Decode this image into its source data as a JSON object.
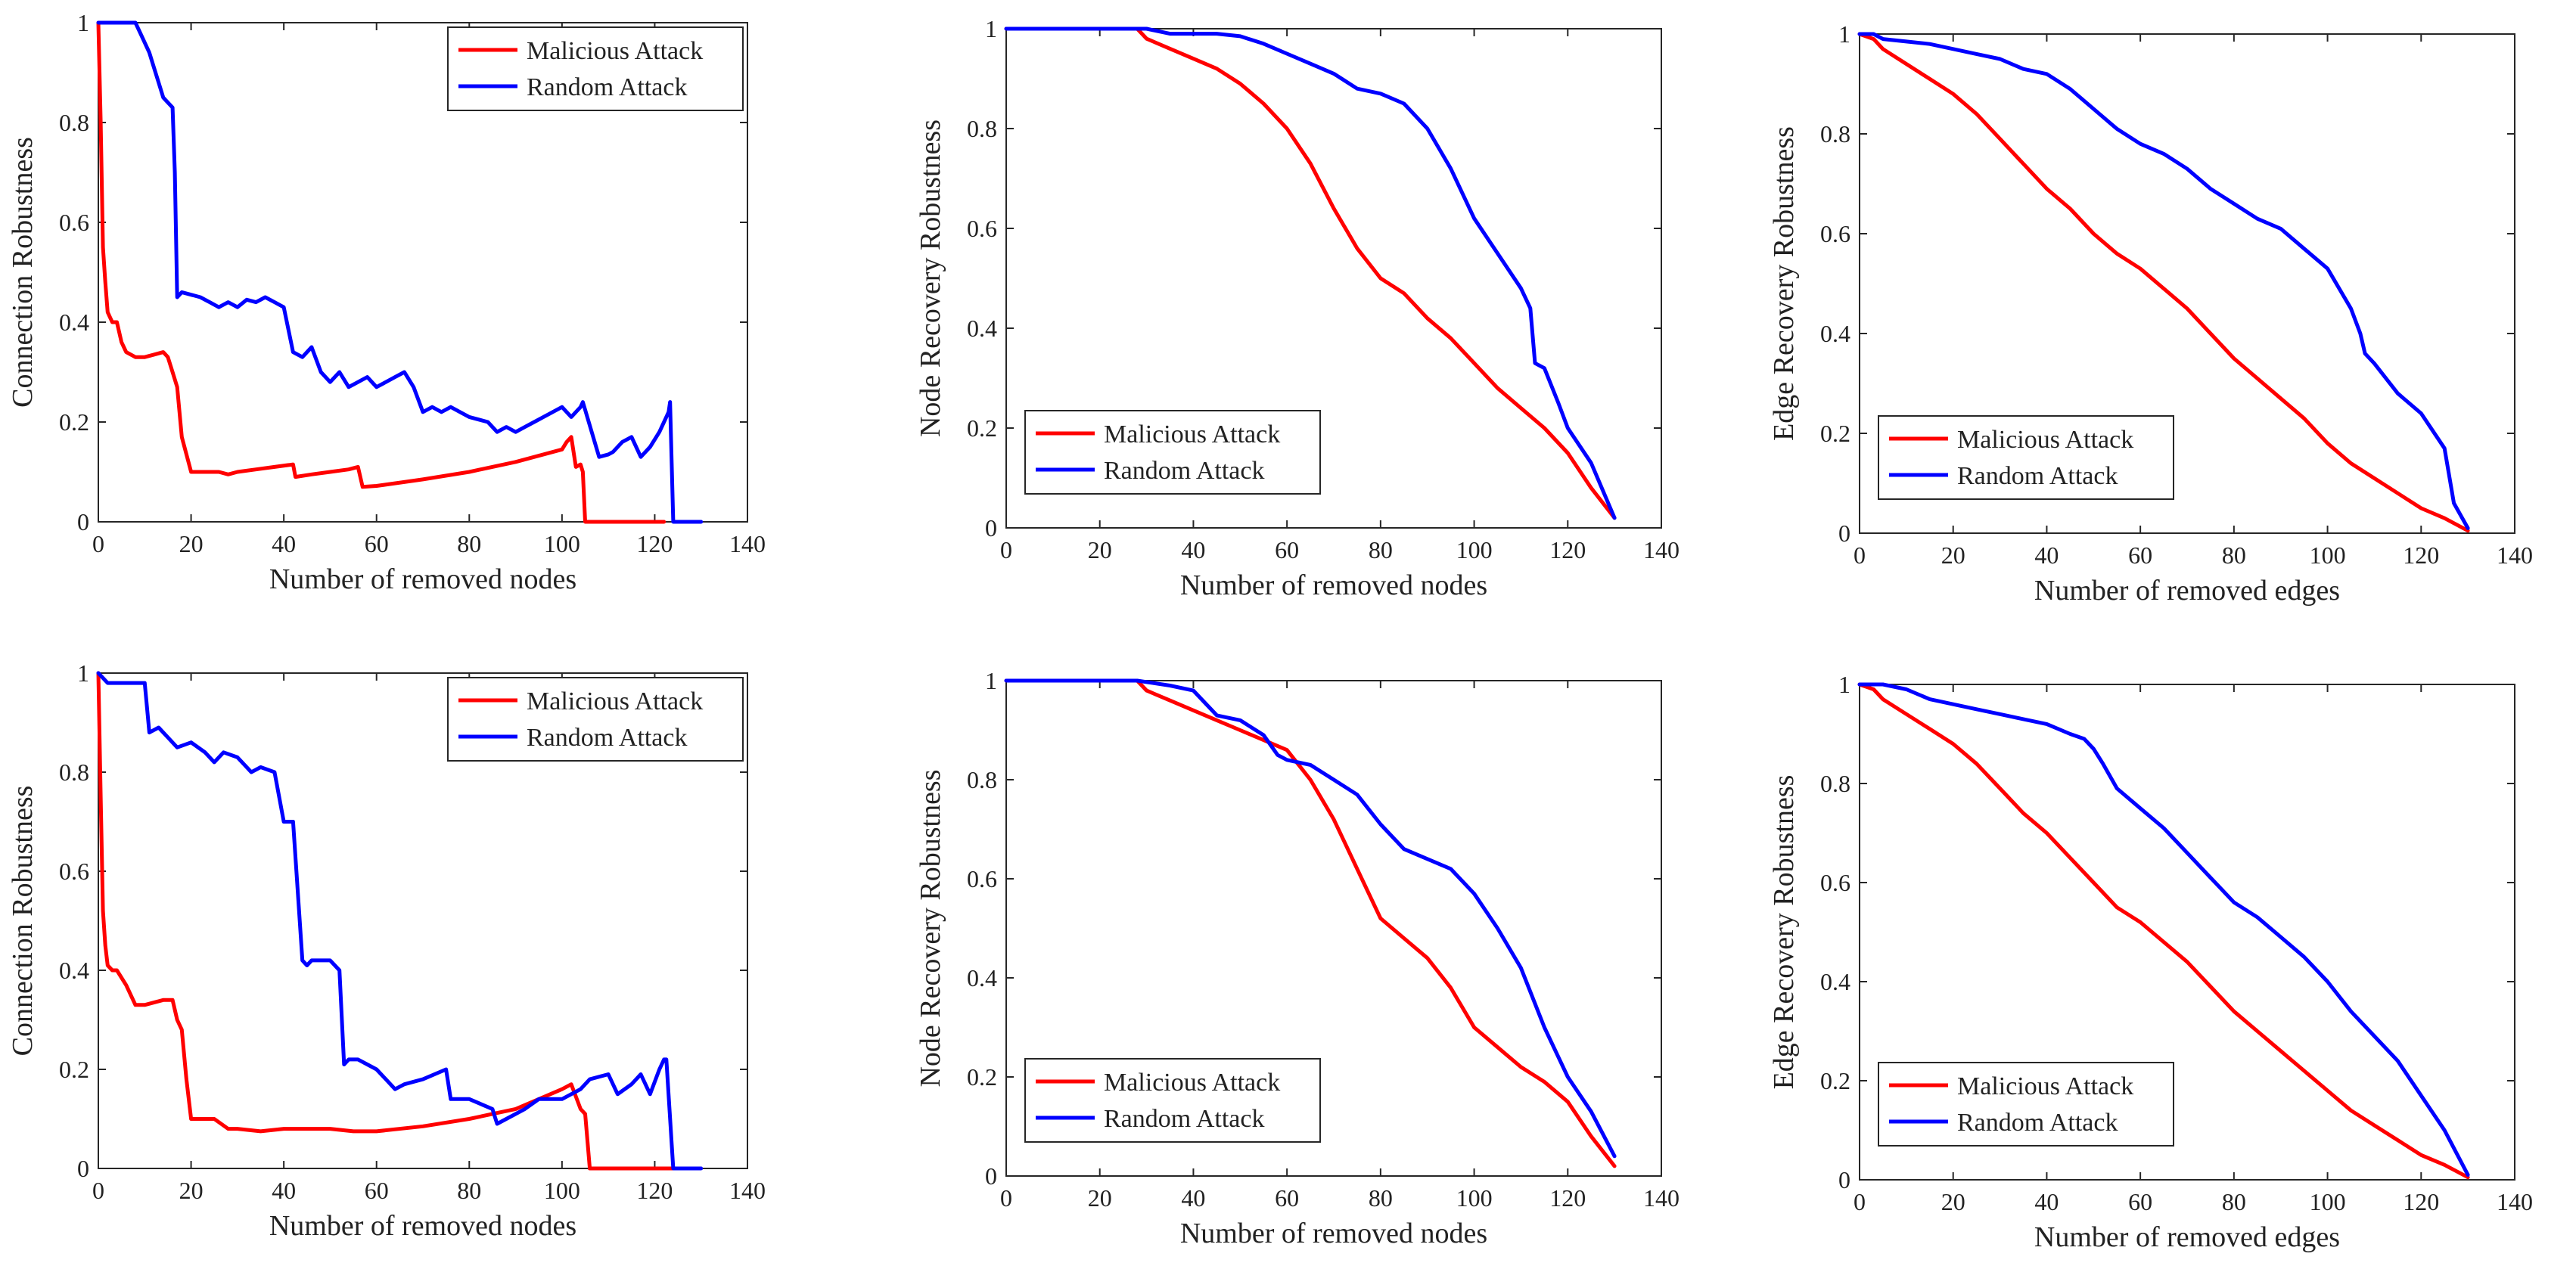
{
  "colors": {
    "malicious": "#ff0000",
    "random": "#0000ff",
    "axis": "#262626"
  },
  "chart_data": [
    {
      "id": "conn-top",
      "type": "line",
      "title": "",
      "xlabel": "Number of removed nodes",
      "ylabel": "Connection Robustness",
      "xlim": [
        0,
        140
      ],
      "ylim": [
        0,
        1
      ],
      "xticks": [
        "0",
        "20",
        "40",
        "60",
        "80",
        "100",
        "120",
        "140"
      ],
      "yticks": [
        "0",
        "0.2",
        "0.4",
        "0.6",
        "0.8",
        "1"
      ],
      "grid": false,
      "legend_position": "top-right",
      "series": [
        {
          "name": "Malicious Attack",
          "color": "#ff0000",
          "x": [
            0,
            0.5,
            1,
            1.5,
            2,
            3,
            4,
            5,
            6,
            8,
            10,
            12,
            14,
            15,
            16,
            17,
            18,
            20,
            22,
            24,
            26,
            28,
            30,
            34,
            38,
            42,
            42.5,
            46,
            50,
            54,
            56,
            57,
            60,
            70,
            80,
            90,
            100,
            101,
            102,
            103,
            104,
            104.5,
            105,
            107,
            112,
            118,
            122
          ],
          "y": [
            1,
            0.8,
            0.55,
            0.48,
            0.42,
            0.4,
            0.4,
            0.36,
            0.34,
            0.33,
            0.33,
            0.335,
            0.34,
            0.33,
            0.3,
            0.27,
            0.17,
            0.1,
            0.1,
            0.1,
            0.1,
            0.095,
            0.1,
            0.105,
            0.11,
            0.115,
            0.09,
            0.095,
            0.1,
            0.105,
            0.11,
            0.07,
            0.072,
            0.085,
            0.1,
            0.12,
            0.145,
            0.16,
            0.17,
            0.11,
            0.115,
            0.1,
            0,
            0,
            0,
            0,
            0
          ]
        },
        {
          "name": "Random Attack",
          "color": "#0000ff",
          "x": [
            0,
            3,
            8,
            9,
            11,
            12,
            13,
            14,
            15,
            16,
            16.5,
            17,
            18,
            22,
            24,
            26,
            28,
            30,
            32,
            34,
            36,
            38,
            40,
            42,
            44,
            46,
            48,
            50,
            52,
            54,
            56,
            58,
            60,
            62,
            64,
            66,
            68,
            70,
            72,
            74,
            76,
            78,
            80,
            84,
            86,
            88,
            90,
            92,
            94,
            96,
            98,
            100,
            102,
            104,
            104.5,
            108,
            110,
            111,
            113,
            115,
            117,
            119,
            121,
            123,
            123.3,
            124,
            126,
            130
          ],
          "y": [
            1,
            1,
            1,
            0.98,
            0.94,
            0.91,
            0.88,
            0.85,
            0.84,
            0.83,
            0.7,
            0.45,
            0.46,
            0.45,
            0.44,
            0.43,
            0.44,
            0.43,
            0.445,
            0.44,
            0.45,
            0.44,
            0.43,
            0.34,
            0.33,
            0.35,
            0.3,
            0.28,
            0.3,
            0.27,
            0.28,
            0.29,
            0.27,
            0.28,
            0.29,
            0.3,
            0.27,
            0.22,
            0.23,
            0.22,
            0.23,
            0.22,
            0.21,
            0.2,
            0.18,
            0.19,
            0.18,
            0.19,
            0.2,
            0.21,
            0.22,
            0.23,
            0.21,
            0.23,
            0.24,
            0.13,
            0.135,
            0.14,
            0.16,
            0.17,
            0.13,
            0.15,
            0.18,
            0.22,
            0.24,
            0,
            0,
            0
          ]
        }
      ]
    },
    {
      "id": "node-top",
      "type": "line",
      "title": "",
      "xlabel": "Number of removed nodes",
      "ylabel": "Node Recovery Robustness",
      "xlim": [
        0,
        140
      ],
      "ylim": [
        0,
        1
      ],
      "xticks": [
        "0",
        "20",
        "40",
        "60",
        "80",
        "100",
        "120",
        "140"
      ],
      "yticks": [
        "0",
        "0.2",
        "0.4",
        "0.6",
        "0.8",
        "1"
      ],
      "grid": false,
      "legend_position": "bottom-left",
      "series": [
        {
          "name": "Malicious Attack",
          "color": "#ff0000",
          "x": [
            0,
            28,
            30,
            35,
            40,
            45,
            50,
            55,
            60,
            65,
            70,
            75,
            80,
            85,
            90,
            95,
            100,
            105,
            110,
            115,
            120,
            125,
            130
          ],
          "y": [
            1,
            1,
            0.98,
            0.96,
            0.94,
            0.92,
            0.89,
            0.85,
            0.8,
            0.73,
            0.64,
            0.56,
            0.5,
            0.47,
            0.42,
            0.38,
            0.33,
            0.28,
            0.24,
            0.2,
            0.15,
            0.08,
            0.02
          ]
        },
        {
          "name": "Random Attack",
          "color": "#0000ff",
          "x": [
            0,
            30,
            35,
            45,
            50,
            55,
            60,
            65,
            70,
            75,
            80,
            85,
            90,
            95,
            100,
            105,
            110,
            112,
            113,
            115,
            118,
            120,
            125,
            130
          ],
          "y": [
            1,
            1,
            0.99,
            0.99,
            0.985,
            0.97,
            0.95,
            0.93,
            0.91,
            0.88,
            0.87,
            0.85,
            0.8,
            0.72,
            0.62,
            0.55,
            0.48,
            0.44,
            0.33,
            0.32,
            0.25,
            0.2,
            0.13,
            0.02
          ]
        }
      ]
    },
    {
      "id": "edge-top",
      "type": "line",
      "title": "",
      "xlabel": "Number of removed edges",
      "ylabel": "Edge Recovery Robustness",
      "xlim": [
        0,
        140
      ],
      "ylim": [
        0,
        1
      ],
      "xticks": [
        "0",
        "20",
        "40",
        "60",
        "80",
        "100",
        "120",
        "140"
      ],
      "yticks": [
        "0",
        "0.2",
        "0.4",
        "0.6",
        "0.8",
        "1"
      ],
      "grid": false,
      "legend_position": "bottom-left",
      "series": [
        {
          "name": "Malicious Attack",
          "color": "#ff0000",
          "x": [
            0,
            3,
            5,
            10,
            15,
            20,
            25,
            30,
            35,
            40,
            45,
            50,
            55,
            60,
            65,
            70,
            75,
            80,
            85,
            90,
            95,
            100,
            105,
            110,
            115,
            120,
            125,
            130
          ],
          "y": [
            1,
            0.99,
            0.97,
            0.94,
            0.91,
            0.88,
            0.84,
            0.79,
            0.74,
            0.69,
            0.65,
            0.6,
            0.56,
            0.53,
            0.49,
            0.45,
            0.4,
            0.35,
            0.31,
            0.27,
            0.23,
            0.18,
            0.14,
            0.11,
            0.08,
            0.05,
            0.03,
            0.005
          ]
        },
        {
          "name": "Random Attack",
          "color": "#0000ff",
          "x": [
            0,
            3,
            5,
            10,
            15,
            20,
            25,
            30,
            35,
            40,
            45,
            50,
            55,
            60,
            65,
            70,
            75,
            80,
            85,
            90,
            95,
            100,
            105,
            107,
            108,
            110,
            115,
            120,
            125,
            127,
            130
          ],
          "y": [
            1,
            1,
            0.99,
            0.985,
            0.98,
            0.97,
            0.96,
            0.95,
            0.93,
            0.92,
            0.89,
            0.85,
            0.81,
            0.78,
            0.76,
            0.73,
            0.69,
            0.66,
            0.63,
            0.61,
            0.57,
            0.53,
            0.45,
            0.4,
            0.36,
            0.34,
            0.28,
            0.24,
            0.17,
            0.06,
            0.01
          ]
        }
      ]
    },
    {
      "id": "conn-bottom",
      "type": "line",
      "title": "",
      "xlabel": "Number of removed nodes",
      "ylabel": "Connection Robustness",
      "xlim": [
        0,
        140
      ],
      "ylim": [
        0,
        1
      ],
      "xticks": [
        "0",
        "20",
        "40",
        "60",
        "80",
        "100",
        "120",
        "140"
      ],
      "yticks": [
        "0",
        "0.2",
        "0.4",
        "0.6",
        "0.8",
        "1"
      ],
      "grid": false,
      "legend_position": "top-right",
      "series": [
        {
          "name": "Malicious Attack",
          "color": "#ff0000",
          "x": [
            0,
            0.5,
            1,
            1.5,
            2,
            3,
            4,
            6,
            8,
            10,
            12,
            14,
            16,
            17,
            18,
            19,
            20,
            25,
            28,
            30,
            35,
            40,
            45,
            50,
            55,
            60,
            70,
            80,
            90,
            100,
            102,
            104,
            105,
            106,
            110,
            120,
            125
          ],
          "y": [
            1,
            0.75,
            0.52,
            0.45,
            0.41,
            0.4,
            0.4,
            0.37,
            0.33,
            0.33,
            0.335,
            0.34,
            0.34,
            0.3,
            0.28,
            0.18,
            0.1,
            0.1,
            0.08,
            0.08,
            0.075,
            0.08,
            0.08,
            0.08,
            0.075,
            0.075,
            0.085,
            0.1,
            0.12,
            0.16,
            0.17,
            0.12,
            0.11,
            0,
            0,
            0,
            0
          ]
        },
        {
          "name": "Random Attack",
          "color": "#0000ff",
          "x": [
            0,
            2,
            10,
            11,
            13,
            15,
            17,
            20,
            23,
            25,
            27,
            30,
            33,
            35,
            38,
            40,
            42,
            44,
            45,
            46,
            48,
            50,
            52,
            53,
            54,
            56,
            58,
            60,
            62,
            64,
            66,
            70,
            75,
            76,
            80,
            85,
            86,
            88,
            92,
            95,
            100,
            104,
            106,
            110,
            112,
            115,
            117,
            119,
            121,
            122,
            122.5,
            124,
            130
          ],
          "y": [
            1,
            0.98,
            0.98,
            0.88,
            0.89,
            0.87,
            0.85,
            0.86,
            0.84,
            0.82,
            0.84,
            0.83,
            0.8,
            0.81,
            0.8,
            0.7,
            0.7,
            0.42,
            0.41,
            0.42,
            0.42,
            0.42,
            0.4,
            0.21,
            0.22,
            0.22,
            0.21,
            0.2,
            0.18,
            0.16,
            0.17,
            0.18,
            0.2,
            0.14,
            0.14,
            0.12,
            0.09,
            0.1,
            0.12,
            0.14,
            0.14,
            0.16,
            0.18,
            0.19,
            0.15,
            0.17,
            0.19,
            0.15,
            0.2,
            0.22,
            0.22,
            0,
            0
          ]
        }
      ]
    },
    {
      "id": "node-bottom",
      "type": "line",
      "title": "",
      "xlabel": "Number of removed nodes",
      "ylabel": "Node Recovery Robustness",
      "xlim": [
        0,
        140
      ],
      "ylim": [
        0,
        1
      ],
      "xticks": [
        "0",
        "20",
        "40",
        "60",
        "80",
        "100",
        "120",
        "140"
      ],
      "yticks": [
        "0",
        "0.2",
        "0.4",
        "0.6",
        "0.8",
        "1"
      ],
      "grid": false,
      "legend_position": "bottom-left",
      "series": [
        {
          "name": "Malicious Attack",
          "color": "#ff0000",
          "x": [
            0,
            28,
            30,
            35,
            40,
            45,
            50,
            55,
            60,
            65,
            70,
            75,
            80,
            85,
            90,
            95,
            100,
            105,
            110,
            115,
            120,
            125,
            130
          ],
          "y": [
            1,
            1,
            0.98,
            0.96,
            0.94,
            0.92,
            0.9,
            0.88,
            0.86,
            0.8,
            0.72,
            0.62,
            0.52,
            0.48,
            0.44,
            0.38,
            0.3,
            0.26,
            0.22,
            0.19,
            0.15,
            0.08,
            0.02
          ]
        },
        {
          "name": "Random Attack",
          "color": "#0000ff",
          "x": [
            0,
            28,
            35,
            40,
            45,
            50,
            55,
            58,
            60,
            65,
            70,
            75,
            80,
            85,
            90,
            95,
            100,
            105,
            110,
            115,
            120,
            125,
            130
          ],
          "y": [
            1,
            1,
            0.99,
            0.98,
            0.93,
            0.92,
            0.89,
            0.85,
            0.84,
            0.83,
            0.8,
            0.77,
            0.71,
            0.66,
            0.64,
            0.62,
            0.57,
            0.5,
            0.42,
            0.3,
            0.2,
            0.13,
            0.04
          ]
        }
      ]
    },
    {
      "id": "edge-bottom",
      "type": "line",
      "title": "",
      "xlabel": "Number of removed edges",
      "ylabel": "Edge Recovery Robustness",
      "xlim": [
        0,
        140
      ],
      "ylim": [
        0,
        1
      ],
      "xticks": [
        "0",
        "20",
        "40",
        "60",
        "80",
        "100",
        "120",
        "140"
      ],
      "yticks": [
        "0",
        "0.2",
        "0.4",
        "0.6",
        "0.8",
        "1"
      ],
      "grid": false,
      "legend_position": "bottom-left",
      "series": [
        {
          "name": "Malicious Attack",
          "color": "#ff0000",
          "x": [
            0,
            3,
            5,
            10,
            15,
            20,
            25,
            30,
            35,
            40,
            45,
            50,
            55,
            60,
            65,
            70,
            75,
            80,
            85,
            90,
            95,
            100,
            105,
            110,
            115,
            120,
            125,
            130
          ],
          "y": [
            1,
            0.99,
            0.97,
            0.94,
            0.91,
            0.88,
            0.84,
            0.79,
            0.74,
            0.7,
            0.65,
            0.6,
            0.55,
            0.52,
            0.48,
            0.44,
            0.39,
            0.34,
            0.3,
            0.26,
            0.22,
            0.18,
            0.14,
            0.11,
            0.08,
            0.05,
            0.03,
            0.005
          ]
        },
        {
          "name": "Random Attack",
          "color": "#0000ff",
          "x": [
            0,
            5,
            10,
            15,
            20,
            25,
            30,
            35,
            40,
            45,
            48,
            50,
            52,
            55,
            60,
            65,
            70,
            75,
            80,
            85,
            90,
            95,
            100,
            105,
            110,
            115,
            120,
            125,
            130
          ],
          "y": [
            1,
            1,
            0.99,
            0.97,
            0.96,
            0.95,
            0.94,
            0.93,
            0.92,
            0.9,
            0.89,
            0.87,
            0.84,
            0.79,
            0.75,
            0.71,
            0.66,
            0.61,
            0.56,
            0.53,
            0.49,
            0.45,
            0.4,
            0.34,
            0.29,
            0.24,
            0.17,
            0.1,
            0.01
          ]
        }
      ]
    }
  ]
}
